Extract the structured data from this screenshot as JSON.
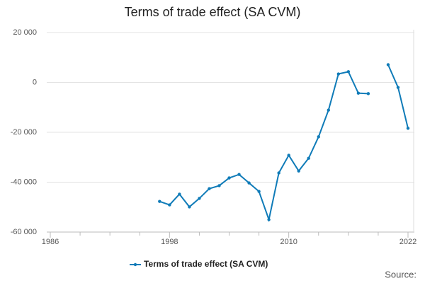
{
  "chart_data": {
    "type": "line",
    "title": "Terms of trade effect (SA CVM)",
    "source": "Source:",
    "x": [
      1997,
      1998,
      1999,
      2000,
      2001,
      2002,
      2003,
      2004,
      2005,
      2006,
      2007,
      2008,
      2009,
      2010,
      2011,
      2012,
      2013,
      2014,
      2015,
      2016,
      2017,
      2018,
      2019,
      2020,
      2021,
      2022
    ],
    "series": [
      {
        "name": "Terms of trade effect (SA CVM)",
        "color": "#0f7bb8",
        "values": [
          -47700,
          -49100,
          -44800,
          -49900,
          -46500,
          -42600,
          -41400,
          -38300,
          -36900,
          -40300,
          -43700,
          -55000,
          -36300,
          -29200,
          -35500,
          -30400,
          -21800,
          -11100,
          3400,
          4300,
          -4300,
          -4500,
          null,
          7100,
          -2000,
          -18400
        ]
      }
    ],
    "xlim": [
      1986,
      2022
    ],
    "xticks": [
      1986,
      1998,
      2010,
      2022
    ],
    "xminor_ticks": [
      1989,
      1992,
      1995,
      2001,
      2004,
      2007,
      2013,
      2016,
      2019
    ],
    "ylim": [
      -60000,
      20000
    ],
    "yticks": [
      {
        "value": -60000,
        "label": "-60 000"
      },
      {
        "value": -40000,
        "label": "-40 000"
      },
      {
        "value": -20000,
        "label": "-20 000"
      },
      0,
      {
        "value": 20000,
        "label": "20 000"
      }
    ],
    "grid": true,
    "legend": "bottom"
  }
}
